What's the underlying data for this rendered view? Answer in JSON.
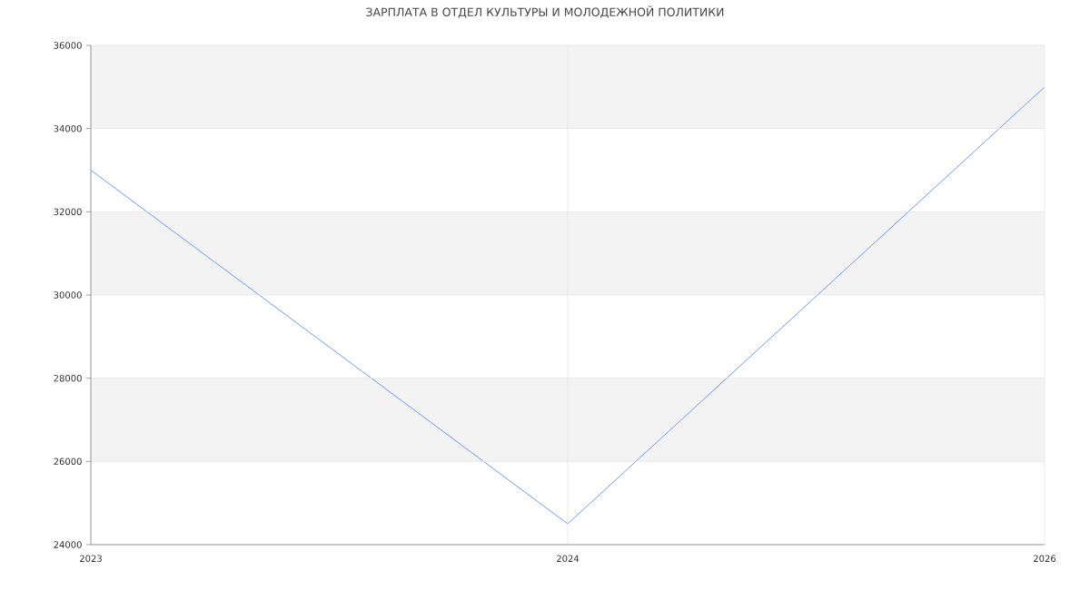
{
  "chart_data": {
    "type": "line",
    "title": "ЗАРПЛАТА В ОТДЕЛ КУЛЬТУРЫ И МОЛОДЕЖНОЙ ПОЛИТИКИ",
    "categories": [
      "2023",
      "2024",
      "2026"
    ],
    "series": [
      {
        "color": "#6d9af5",
        "values": [
          33000,
          24500,
          35000
        ]
      }
    ],
    "ylim": [
      24000,
      36000
    ],
    "yticks": [
      24000,
      26000,
      28000,
      30000,
      32000,
      34000,
      36000
    ],
    "grid": true,
    "marker": "none",
    "line_style": "solid",
    "bands": [
      {
        "axis": "y",
        "from": 26000,
        "to": 28000,
        "color": "#f3f3f3"
      },
      {
        "axis": "y",
        "from": 30000,
        "to": 32000,
        "color": "#f3f3f3"
      },
      {
        "axis": "y",
        "from": 34000,
        "to": 36000,
        "color": "#f3f3f3"
      }
    ]
  }
}
